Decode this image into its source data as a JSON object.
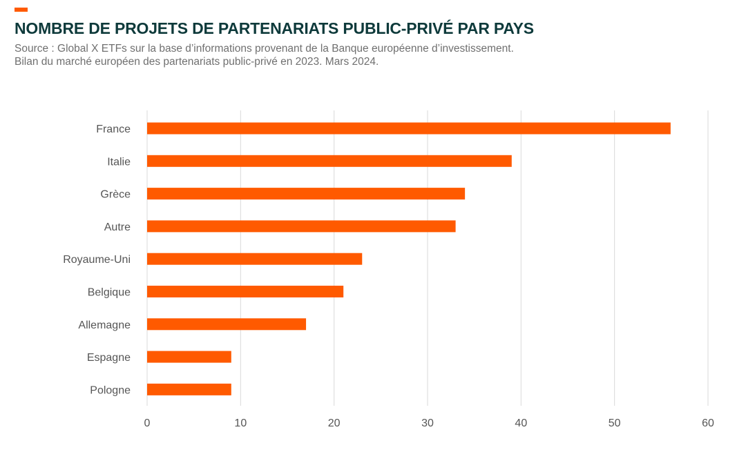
{
  "header": {
    "title": "NOMBRE DE PROJETS DE PARTENARIATS PUBLIC-PRIVÉ PAR PAYS",
    "subtitle_line1": "Source : Global X ETFs sur la base d’informations provenant de la Banque européenne d’investissement.",
    "subtitle_line2": "Bilan du marché européen des partenariats public-privé en 2023. Mars 2024."
  },
  "colors": {
    "accent": "#ff5a00",
    "bar": "#ff5a00",
    "title": "#0e3a3b",
    "gridline": "#d9d9d9"
  },
  "chart_data": {
    "type": "bar",
    "orientation": "horizontal",
    "categories": [
      "France",
      "Italie",
      "Grèce",
      "Autre",
      "Royaume-Uni",
      "Belgique",
      "Allemagne",
      "Espagne",
      "Pologne"
    ],
    "values": [
      56,
      39,
      34,
      33,
      23,
      21,
      17,
      9,
      9
    ],
    "xlim": [
      0,
      60
    ],
    "xticks": [
      0,
      10,
      20,
      30,
      40,
      50,
      60
    ],
    "grid": true,
    "legend": "none",
    "title": "NOMBRE DE PROJETS DE PARTENARIATS PUBLIC-PRIVÉ PAR PAYS",
    "xlabel": "",
    "ylabel": ""
  }
}
